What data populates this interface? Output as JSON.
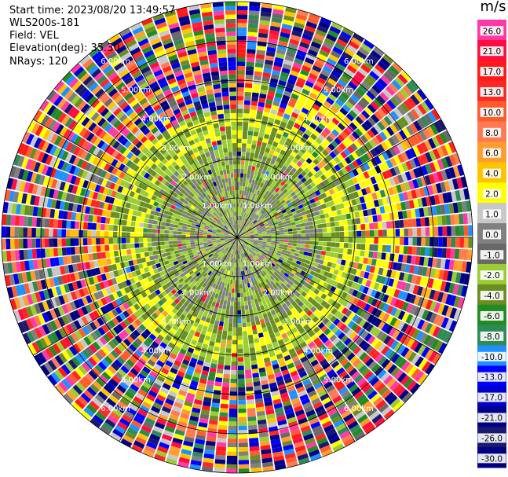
{
  "header": {
    "start_time": "Start time: 2023/08/20 13:49:57",
    "instrument": "WLS200s-181",
    "field": "Field: VEL",
    "elevation": "Elevation(deg): 35.30",
    "nrays": "NRays: 120"
  },
  "chart_data": {
    "type": "heatmap",
    "projection": "polar-ppi",
    "field": "VEL",
    "units": "m/s",
    "nrays": 120,
    "elevation_deg": 35.3,
    "range_rings_km": [
      1.0,
      2.0,
      3.0,
      4.0,
      5.0,
      6.0
    ],
    "ring_labels": [
      "1.00km",
      "2.00km",
      "3.00km",
      "4.00km",
      "5.00km",
      "6.00km"
    ],
    "max_range_km": 6.0,
    "range_gates": 55,
    "colorbar": {
      "title": "m/s",
      "ticks": [
        "26.0",
        "21.0",
        "17.0",
        "13.0",
        "10.0",
        "8.0",
        "6.0",
        "4.0",
        "2.0",
        "1.0",
        "0.0",
        "-1.0",
        "-2.0",
        "-4.0",
        "-6.0",
        "-8.0",
        "-10.0",
        "-13.0",
        "-17.0",
        "-21.0",
        "-26.0",
        "-30.0"
      ],
      "colors": [
        "#ff3aa6",
        "#ff0d42",
        "#ff1a1a",
        "#ff2626",
        "#ff5c2e",
        "#ff7a52",
        "#ff9d2e",
        "#ffc300",
        "#ffff00",
        "#c8c8c8",
        "#808080",
        "#696969",
        "#9acd32",
        "#6b8e23",
        "#228b22",
        "#2e8b57",
        "#1e90ff",
        "#0000ff",
        "#0000cd",
        "#00008b",
        "#191970",
        "#000080"
      ]
    },
    "regions": [
      {
        "range_km": [
          0.0,
          1.0
        ],
        "dominant": [
          "#808080",
          "#9acd32"
        ]
      },
      {
        "range_km": [
          1.0,
          2.2
        ],
        "dominant": [
          "#9acd32",
          "#808080",
          "#6b8e23"
        ]
      },
      {
        "range_km": [
          2.2,
          3.2
        ],
        "dominant": [
          "#9acd32",
          "#6b8e23",
          "#ffff00"
        ]
      },
      {
        "range_km": [
          3.2,
          6.0
        ],
        "dominant": "mixed"
      }
    ]
  }
}
